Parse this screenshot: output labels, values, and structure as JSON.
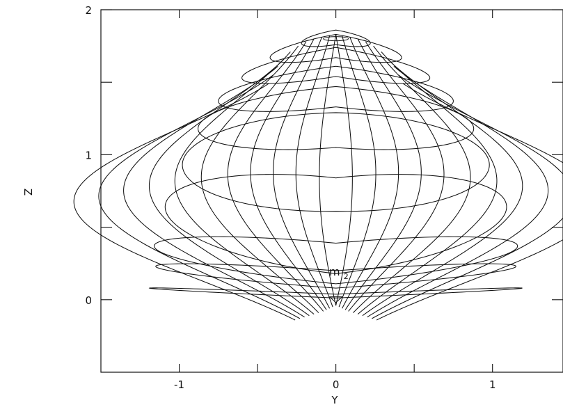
{
  "chart_data": {
    "type": "line",
    "title": "",
    "xlabel": "Y",
    "ylabel": "Z",
    "xlim": [
      -1.5,
      1.45
    ],
    "ylim": [
      -0.5,
      2.0
    ],
    "xticks": [
      -1,
      -0.5,
      0,
      0.5,
      1
    ],
    "xtick_labels": [
      "-1",
      "",
      "0",
      "",
      "1"
    ],
    "yticks": [
      0,
      0.5,
      1,
      1.5,
      2
    ],
    "ytick_labels": [
      "0",
      "",
      "1",
      "",
      "2"
    ],
    "grid": false,
    "legend": "none",
    "annotation": {
      "text": "m",
      "subscript": "2",
      "x": 0.0,
      "y": 0.16
    },
    "colors": {
      "line": "#111111",
      "axis": "#111111"
    },
    "latitude_curves": [
      {
        "z0": 0.08,
        "a": 1.19,
        "b": 0.013,
        "tilt": -0.055
      },
      {
        "z0": 0.23,
        "a": 1.15,
        "b": 0.06,
        "tilt": -0.09
      },
      {
        "z0": 0.37,
        "a": 1.16,
        "b": 0.14,
        "tilt": -0.12
      },
      {
        "z0": 0.64,
        "a": 1.09,
        "b": 0.33,
        "tilt": -0.13
      },
      {
        "z0": 0.93,
        "a": 0.98,
        "b": 0.34,
        "tilt": 0.02
      },
      {
        "z0": 1.18,
        "a": 0.88,
        "b": 0.21,
        "tilt": 0.08
      },
      {
        "z0": 1.37,
        "a": 0.75,
        "b": 0.14,
        "tilt": 0.1
      },
      {
        "z0": 1.53,
        "a": 0.6,
        "b": 0.1,
        "tilt": 0.11
      },
      {
        "z0": 1.67,
        "a": 0.42,
        "b": 0.08,
        "tilt": 0.08
      },
      {
        "z0": 1.77,
        "a": 0.22,
        "b": 0.05,
        "tilt": 0.04
      }
    ],
    "meridian_curves": [
      {
        "top_y": 0.0,
        "top_z": 1.83,
        "bottom_y": 0.0,
        "bottom_z": -0.04,
        "bulge": 0.12,
        "belly": 0.0
      },
      {
        "top_y": 0.04,
        "top_z": 1.82,
        "bottom_y": 0.02,
        "bottom_z": -0.05,
        "bulge": 0.2,
        "belly": 0.05
      },
      {
        "top_y": 0.09,
        "top_z": 1.81,
        "bottom_y": 0.04,
        "bottom_z": -0.06,
        "bulge": 0.28,
        "belly": 0.09
      },
      {
        "top_y": 0.14,
        "top_z": 1.8,
        "bottom_y": 0.06,
        "bottom_z": -0.07,
        "bulge": 0.36,
        "belly": 0.13
      },
      {
        "top_y": 0.19,
        "top_z": 1.78,
        "bottom_y": 0.08,
        "bottom_z": -0.08,
        "bulge": 0.44,
        "belly": 0.17
      },
      {
        "top_y": 0.24,
        "top_z": 1.75,
        "bottom_y": 0.11,
        "bottom_z": -0.09,
        "bulge": 0.53,
        "belly": 0.22
      },
      {
        "top_y": 0.29,
        "top_z": 1.71,
        "bottom_y": 0.14,
        "bottom_z": -0.1,
        "bulge": 0.62,
        "belly": 0.27
      },
      {
        "top_y": 0.33,
        "top_z": 1.66,
        "bottom_y": 0.17,
        "bottom_z": -0.11,
        "bulge": 0.71,
        "belly": 0.32
      },
      {
        "top_y": 0.37,
        "top_z": 1.61,
        "bottom_y": 0.2,
        "bottom_z": -0.12,
        "bulge": 0.8,
        "belly": 0.37
      },
      {
        "top_y": 0.4,
        "top_z": 1.55,
        "bottom_y": 0.23,
        "bottom_z": -0.13,
        "bulge": 0.89,
        "belly": 0.42
      },
      {
        "top_y": 0.43,
        "top_z": 1.49,
        "bottom_y": 0.26,
        "bottom_z": -0.14,
        "bulge": 0.98,
        "belly": 0.47
      }
    ]
  }
}
